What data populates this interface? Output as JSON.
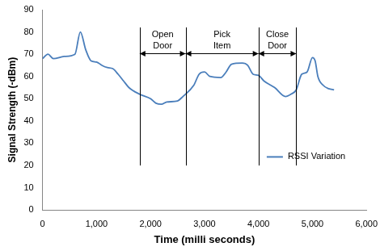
{
  "chart_data": {
    "type": "line",
    "x_label": "Time (milli seconds)",
    "y_label": "Signal Strength (-dBm)",
    "x": [
      0,
      100,
      200,
      400,
      600,
      700,
      800,
      900,
      1000,
      1100,
      1200,
      1300,
      1400,
      1500,
      1600,
      1800,
      2000,
      2100,
      2200,
      2300,
      2500,
      2600,
      2800,
      2900,
      3000,
      3100,
      3300,
      3400,
      3500,
      3700,
      3800,
      3900,
      4000,
      4100,
      4300,
      4500,
      4600,
      4700,
      4800,
      4900,
      5000,
      5050,
      5100,
      5200,
      5300,
      5400
    ],
    "series": [
      {
        "name": "RSSI Variation",
        "color": "#4a7ebb",
        "values": [
          68,
          70,
          68,
          69,
          70,
          80,
          72,
          67,
          66.5,
          65,
          64,
          63.5,
          61,
          58,
          55,
          52,
          50,
          48,
          47.5,
          48.5,
          49,
          51,
          56,
          61,
          62,
          60,
          59.5,
          62,
          65.5,
          66,
          65,
          61,
          60.5,
          58,
          55,
          51,
          52,
          54,
          61,
          62,
          68.5,
          67,
          60,
          56,
          54.5,
          54
        ]
      }
    ],
    "xlim": [
      0,
      6000
    ],
    "xticks": [
      0,
      1000,
      2000,
      3000,
      4000,
      5000,
      6000
    ],
    "ylim": [
      0,
      90
    ],
    "yticks": [
      0,
      10,
      20,
      30,
      40,
      50,
      60,
      70,
      80,
      90
    ],
    "grid": false,
    "legend": "lower right",
    "annotations": [
      {
        "text": "Open Door",
        "x_start": 1800,
        "x_end": 2650,
        "y": 70.5
      },
      {
        "text": "Pick Item",
        "x_start": 2650,
        "x_end": 4000,
        "y": 70.5
      },
      {
        "text": "Close Door",
        "x_start": 4000,
        "x_end": 4700,
        "y": 70.5
      }
    ],
    "line_y": [
      20,
      82
    ]
  }
}
